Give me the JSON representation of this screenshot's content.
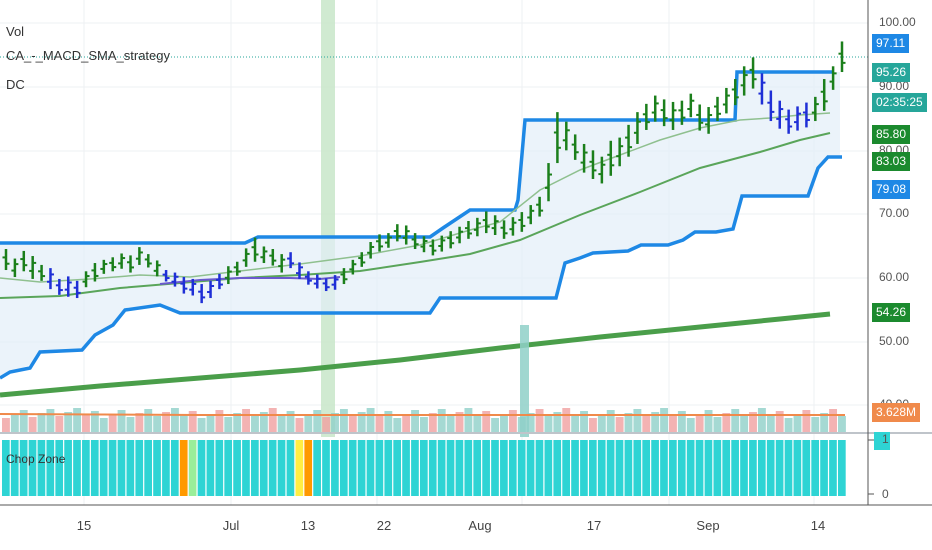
{
  "legend": {
    "vol": "Vol",
    "strategy": "CA_-_MACD_SMA_strategy",
    "dc": "DC"
  },
  "chop_zone": {
    "title": "Chop Zone",
    "axis_top": "1",
    "axis_zero": "0"
  },
  "price_axis": {
    "ticks": [
      "100.00",
      "90.00",
      "80.00",
      "70.00",
      "60.00",
      "50.00",
      "40.00"
    ]
  },
  "date_axis": {
    "labels": [
      "15",
      "Jul",
      "13",
      "22",
      "Aug",
      "17",
      "Sep",
      "14"
    ]
  },
  "price_tags": [
    {
      "label": "97.11",
      "color": "#1e88e5"
    },
    {
      "label": "95.26",
      "color": "#26a69a"
    },
    {
      "label": "02:35:25",
      "color": "#26a69a"
    },
    {
      "label": "85.80",
      "color": "#1b8a2e"
    },
    {
      "label": "83.03",
      "color": "#1b8a2e"
    },
    {
      "label": "79.08",
      "color": "#1e88e5"
    },
    {
      "label": "54.26",
      "color": "#1b8a2e"
    },
    {
      "label": "3.628M",
      "color": "#f08a4b"
    }
  ],
  "chart_data": {
    "type": "ohlc",
    "x_labels": [
      "15",
      "Jul",
      "13",
      "22",
      "Aug",
      "17",
      "Sep",
      "14"
    ],
    "y_ticks": [
      100,
      90,
      80,
      70,
      60,
      50,
      40
    ],
    "colors": {
      "up_bar": "#1b7f1b",
      "down_bar": "#1f2fd6",
      "donchian": "#1e88e5",
      "sma_fast": "#8fc08f",
      "sma_mid": "#5aa55a",
      "sma_slow": "#4a9e4a",
      "volume_up": "#8fd0c8",
      "volume_down": "#f0a0a0",
      "volume_ma": "#f08a4b",
      "chop_main": "#2ed4d4",
      "chop_orange": "#ff9900",
      "chop_yellow": "#ffee44",
      "chop_lightgreen": "#99ee99",
      "highlight": "#c8e6c9"
    },
    "ohlc": [
      [
        64.5,
        61.2
      ],
      [
        63.0,
        60.1
      ],
      [
        64.2,
        61.0
      ],
      [
        63.4,
        59.8
      ],
      [
        62.0,
        59.5
      ],
      [
        61.5,
        58.2
      ],
      [
        59.8,
        57.3
      ],
      [
        60.2,
        57.0
      ],
      [
        59.5,
        56.8
      ],
      [
        61.0,
        58.5
      ],
      [
        62.3,
        59.4
      ],
      [
        62.8,
        60.6
      ],
      [
        63.2,
        61.0
      ],
      [
        63.8,
        61.4
      ],
      [
        63.5,
        60.8
      ],
      [
        64.8,
        62.0
      ],
      [
        63.7,
        61.6
      ],
      [
        62.7,
        60.2
      ],
      [
        61.2,
        59.4
      ],
      [
        60.8,
        58.6
      ],
      [
        60.1,
        57.5
      ],
      [
        59.8,
        57.2
      ],
      [
        59.0,
        56.0
      ],
      [
        59.5,
        56.8
      ],
      [
        60.6,
        58.2
      ],
      [
        61.8,
        59.0
      ],
      [
        62.5,
        60.3
      ],
      [
        64.6,
        61.7
      ],
      [
        66.3,
        62.5
      ],
      [
        64.9,
        62.3
      ],
      [
        64.5,
        61.9
      ],
      [
        63.7,
        60.8
      ],
      [
        64.0,
        61.5
      ],
      [
        62.4,
        59.8
      ],
      [
        61.0,
        58.9
      ],
      [
        60.5,
        58.3
      ],
      [
        59.9,
        57.9
      ],
      [
        60.4,
        58.1
      ],
      [
        61.5,
        59.0
      ],
      [
        62.8,
        60.5
      ],
      [
        64.0,
        61.7
      ],
      [
        65.6,
        63.0
      ],
      [
        66.8,
        64.1
      ],
      [
        67.0,
        64.7
      ],
      [
        68.4,
        65.7
      ],
      [
        68.2,
        65.2
      ],
      [
        67.0,
        64.5
      ],
      [
        66.5,
        64.0
      ],
      [
        66.0,
        63.5
      ],
      [
        66.6,
        64.1
      ],
      [
        67.3,
        64.6
      ],
      [
        68.0,
        65.4
      ],
      [
        68.9,
        66.1
      ],
      [
        69.4,
        66.5
      ],
      [
        70.4,
        67.0
      ],
      [
        69.8,
        66.7
      ],
      [
        69.0,
        66.1
      ],
      [
        69.5,
        66.6
      ],
      [
        70.3,
        67.2
      ],
      [
        71.4,
        68.4
      ],
      [
        72.7,
        69.6
      ],
      [
        78.0,
        72.0
      ],
      [
        86.0,
        78.0
      ],
      [
        84.5,
        80.0
      ],
      [
        82.5,
        78.5
      ],
      [
        81.0,
        76.5
      ],
      [
        80.0,
        75.5
      ],
      [
        79.0,
        74.8
      ],
      [
        81.5,
        76.0
      ],
      [
        82.0,
        77.5
      ],
      [
        84.0,
        79.0
      ],
      [
        86.0,
        81.0
      ],
      [
        87.3,
        83.2
      ],
      [
        88.6,
        84.5
      ],
      [
        88.0,
        83.8
      ],
      [
        87.6,
        83.2
      ],
      [
        87.8,
        84.0
      ],
      [
        88.9,
        85.2
      ],
      [
        87.2,
        83.1
      ],
      [
        86.8,
        82.6
      ],
      [
        88.4,
        84.6
      ],
      [
        89.8,
        85.8
      ],
      [
        91.2,
        87.1
      ],
      [
        93.2,
        88.6
      ],
      [
        94.6,
        89.7
      ],
      [
        92.1,
        87.2
      ],
      [
        89.4,
        84.6
      ],
      [
        87.8,
        83.4
      ],
      [
        86.4,
        82.6
      ],
      [
        86.9,
        83.1
      ],
      [
        87.5,
        83.6
      ],
      [
        88.4,
        84.6
      ],
      [
        91.2,
        86.2
      ],
      [
        93.2,
        89.5
      ],
      [
        97.1,
        92.3
      ]
    ],
    "donchian_upper": [
      66,
      66,
      66,
      66,
      66,
      66,
      66,
      66,
      66,
      66,
      66,
      66,
      66,
      66,
      66,
      66,
      66,
      66,
      66,
      66,
      66,
      66,
      66,
      66,
      66,
      66,
      66,
      66,
      66,
      66
    ],
    "sma_note": "",
    "volume_ma_level": 3.628,
    "chop_zone_axis": [
      1,
      0
    ]
  }
}
